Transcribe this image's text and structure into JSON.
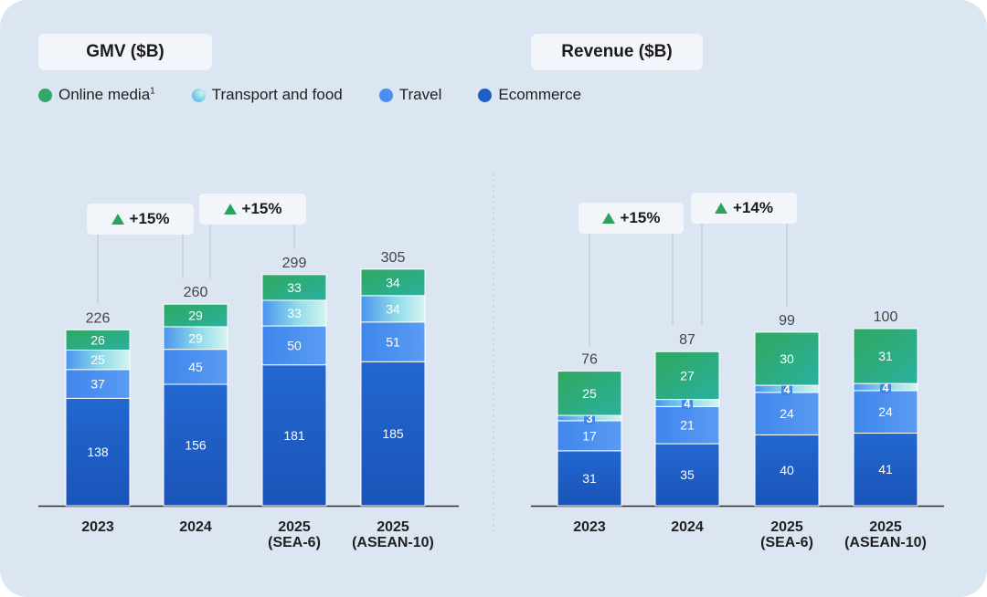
{
  "colors": {
    "online_media": "#2fa868",
    "transport_food": "#7fd9e6",
    "travel": "#4a8df0",
    "ecommerce": "#1e5fc4",
    "axis": "#2a2a2a",
    "total_label": "#444444",
    "growth_triangle": "#2aa45a"
  },
  "legend": [
    {
      "label": "Online media",
      "sup": "1",
      "icon": "green-dot-icon",
      "color": "#2fa868"
    },
    {
      "label": "Transport and food",
      "sup": "",
      "icon": "teal-gradient-dot-icon",
      "color": "#7fd9e6"
    },
    {
      "label": "Travel",
      "sup": "",
      "icon": "blue-dot-icon",
      "color": "#4a8df0"
    },
    {
      "label": "Ecommerce",
      "sup": "",
      "icon": "dark-blue-dot-icon",
      "color": "#1e5fc4"
    }
  ],
  "panels": [
    {
      "title": "GMV ($B)"
    },
    {
      "title": "Revenue ($B)"
    }
  ],
  "chart_data": [
    {
      "type": "bar",
      "stacked": true,
      "title": "GMV ($B)",
      "categories": [
        [
          "2023"
        ],
        [
          "2024"
        ],
        [
          "2025",
          "(SEA-6)"
        ],
        [
          "2025",
          "(ASEAN-10)"
        ]
      ],
      "series": [
        {
          "name": "Ecommerce",
          "values": [
            138,
            156,
            181,
            185
          ]
        },
        {
          "name": "Travel",
          "values": [
            37,
            45,
            50,
            51
          ]
        },
        {
          "name": "Transport and food",
          "values": [
            25,
            29,
            33,
            34
          ]
        },
        {
          "name": "Online media",
          "values": [
            26,
            29,
            33,
            34
          ]
        }
      ],
      "totals": [
        226,
        260,
        299,
        305
      ],
      "growth_annotations": [
        {
          "from_index": 0,
          "to_index": 1,
          "label": "+15%"
        },
        {
          "from_index": 1,
          "to_index": 2,
          "label": "+15%"
        }
      ],
      "ylim": [
        0,
        305
      ]
    },
    {
      "type": "bar",
      "stacked": true,
      "title": "Revenue ($B)",
      "categories": [
        [
          "2023"
        ],
        [
          "2024"
        ],
        [
          "2025",
          "(SEA-6)"
        ],
        [
          "2025",
          "(ASEAN-10)"
        ]
      ],
      "series": [
        {
          "name": "Ecommerce",
          "values": [
            31,
            35,
            40,
            41
          ]
        },
        {
          "name": "Travel",
          "values": [
            17,
            21,
            24,
            24
          ]
        },
        {
          "name": "Transport and food",
          "values": [
            3,
            4,
            4,
            4
          ]
        },
        {
          "name": "Online media",
          "values": [
            25,
            27,
            30,
            31
          ]
        }
      ],
      "totals": [
        76,
        87,
        99,
        100
      ],
      "growth_annotations": [
        {
          "from_index": 0,
          "to_index": 1,
          "label": "+15%"
        },
        {
          "from_index": 1,
          "to_index": 2,
          "label": "+14%"
        }
      ],
      "ylim": [
        0,
        100
      ]
    }
  ]
}
